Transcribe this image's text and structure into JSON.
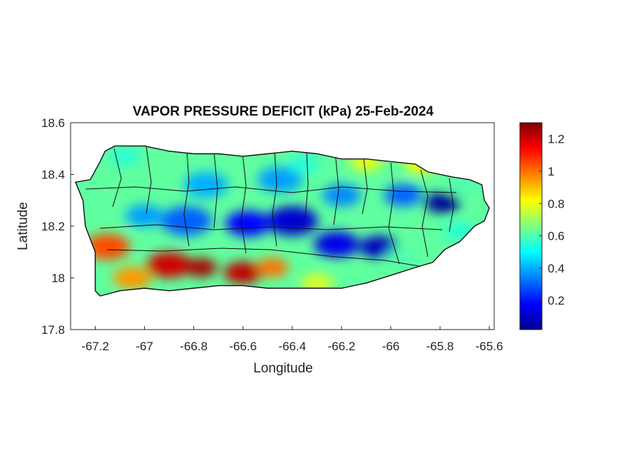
{
  "map": {
    "title": "VAPOR PRESSURE DEFICIT (kPa) 25-Feb-2024",
    "xlabel": "Longitude",
    "ylabel": "Latitude",
    "x_range": [
      -67.3,
      -65.58
    ],
    "y_range": [
      17.8,
      18.6
    ],
    "x_ticks": [
      {
        "value": -67.2,
        "label": "-67.2"
      },
      {
        "value": -67.0,
        "label": "-67"
      },
      {
        "value": -66.8,
        "label": "-66.8"
      },
      {
        "value": -66.6,
        "label": "-66.6"
      },
      {
        "value": -66.4,
        "label": "-66.4"
      },
      {
        "value": -66.2,
        "label": "-66.2"
      },
      {
        "value": -66.0,
        "label": "-66"
      },
      {
        "value": -65.8,
        "label": "-65.8"
      },
      {
        "value": -65.6,
        "label": "-65.6"
      }
    ],
    "y_ticks": [
      {
        "value": 17.8,
        "label": "17.8"
      },
      {
        "value": 18.0,
        "label": "18"
      },
      {
        "value": 18.2,
        "label": "18.2"
      },
      {
        "value": 18.4,
        "label": "18.4"
      },
      {
        "value": 18.6,
        "label": "18.6"
      }
    ],
    "colormap": "jet",
    "colorbar": {
      "range": [
        0.02,
        1.3
      ],
      "ticks": [
        {
          "value": 0.2,
          "label": "0.2"
        },
        {
          "value": 0.4,
          "label": "0.4"
        },
        {
          "value": 0.6,
          "label": "0.6"
        },
        {
          "value": 0.8,
          "label": "0.8"
        },
        {
          "value": 1.0,
          "label": "1"
        },
        {
          "value": 1.2,
          "label": "1.2"
        }
      ]
    },
    "background_vpd": 0.62,
    "island_outline_lonlat": [
      [
        -67.22,
        18.38
      ],
      [
        -67.18,
        18.45
      ],
      [
        -67.16,
        18.49
      ],
      [
        -67.12,
        18.51
      ],
      [
        -67.0,
        18.51
      ],
      [
        -66.9,
        18.49
      ],
      [
        -66.8,
        18.48
      ],
      [
        -66.7,
        18.48
      ],
      [
        -66.6,
        18.47
      ],
      [
        -66.5,
        18.48
      ],
      [
        -66.4,
        18.49
      ],
      [
        -66.3,
        18.48
      ],
      [
        -66.2,
        18.46
      ],
      [
        -66.1,
        18.46
      ],
      [
        -66.0,
        18.45
      ],
      [
        -65.9,
        18.44
      ],
      [
        -65.85,
        18.41
      ],
      [
        -65.75,
        18.39
      ],
      [
        -65.68,
        18.38
      ],
      [
        -65.63,
        18.36
      ],
      [
        -65.62,
        18.3
      ],
      [
        -65.6,
        18.27
      ],
      [
        -65.62,
        18.22
      ],
      [
        -65.66,
        18.2
      ],
      [
        -65.72,
        18.14
      ],
      [
        -65.78,
        18.11
      ],
      [
        -65.83,
        18.06
      ],
      [
        -65.9,
        18.04
      ],
      [
        -66.0,
        18.01
      ],
      [
        -66.1,
        17.98
      ],
      [
        -66.2,
        17.96
      ],
      [
        -66.3,
        17.96
      ],
      [
        -66.4,
        17.96
      ],
      [
        -66.5,
        17.96
      ],
      [
        -66.6,
        17.97
      ],
      [
        -66.7,
        17.97
      ],
      [
        -66.8,
        17.96
      ],
      [
        -66.9,
        17.95
      ],
      [
        -67.0,
        17.96
      ],
      [
        -67.1,
        17.95
      ],
      [
        -67.18,
        17.93
      ],
      [
        -67.2,
        17.95
      ],
      [
        -67.2,
        18.05
      ],
      [
        -67.2,
        18.1
      ],
      [
        -67.24,
        18.2
      ],
      [
        -67.25,
        18.3
      ],
      [
        -67.28,
        18.37
      ],
      [
        -67.22,
        18.38
      ]
    ],
    "vpd_blobs": [
      {
        "lon": -65.79,
        "lat": 18.29,
        "vpd": 0.05,
        "r": 0.055
      },
      {
        "lon": -66.05,
        "lat": 18.12,
        "vpd": 0.1,
        "r": 0.06
      },
      {
        "lon": -66.22,
        "lat": 18.13,
        "vpd": 0.15,
        "r": 0.07
      },
      {
        "lon": -66.4,
        "lat": 18.22,
        "vpd": 0.12,
        "r": 0.08
      },
      {
        "lon": -66.58,
        "lat": 18.21,
        "vpd": 0.18,
        "r": 0.07
      },
      {
        "lon": -66.83,
        "lat": 18.22,
        "vpd": 0.3,
        "r": 0.08
      },
      {
        "lon": -67.0,
        "lat": 18.24,
        "vpd": 0.38,
        "r": 0.06
      },
      {
        "lon": -66.75,
        "lat": 18.36,
        "vpd": 0.4,
        "r": 0.07
      },
      {
        "lon": -66.45,
        "lat": 18.38,
        "vpd": 0.38,
        "r": 0.07
      },
      {
        "lon": -66.2,
        "lat": 18.32,
        "vpd": 0.35,
        "r": 0.06
      },
      {
        "lon": -66.35,
        "lat": 18.44,
        "vpd": 0.55,
        "r": 0.05
      },
      {
        "lon": -65.95,
        "lat": 18.32,
        "vpd": 0.3,
        "r": 0.06
      },
      {
        "lon": -67.15,
        "lat": 18.12,
        "vpd": 1.05,
        "r": 0.07
      },
      {
        "lon": -66.9,
        "lat": 18.05,
        "vpd": 1.2,
        "r": 0.07
      },
      {
        "lon": -66.77,
        "lat": 18.04,
        "vpd": 1.25,
        "r": 0.05
      },
      {
        "lon": -66.6,
        "lat": 18.02,
        "vpd": 1.22,
        "r": 0.06
      },
      {
        "lon": -66.48,
        "lat": 18.04,
        "vpd": 1.0,
        "r": 0.05
      },
      {
        "lon": -67.05,
        "lat": 18.0,
        "vpd": 0.95,
        "r": 0.06
      },
      {
        "lon": -66.3,
        "lat": 17.98,
        "vpd": 0.78,
        "r": 0.05
      },
      {
        "lon": -65.88,
        "lat": 18.44,
        "vpd": 0.82,
        "r": 0.05
      },
      {
        "lon": -66.1,
        "lat": 18.45,
        "vpd": 0.8,
        "r": 0.05
      },
      {
        "lon": -65.7,
        "lat": 18.36,
        "vpd": 0.6,
        "r": 0.05
      },
      {
        "lon": -65.72,
        "lat": 18.18,
        "vpd": 0.55,
        "r": 0.05
      },
      {
        "lon": -65.95,
        "lat": 18.08,
        "vpd": 0.6,
        "r": 0.05
      },
      {
        "lon": -67.08,
        "lat": 18.47,
        "vpd": 0.55,
        "r": 0.05
      }
    ]
  }
}
